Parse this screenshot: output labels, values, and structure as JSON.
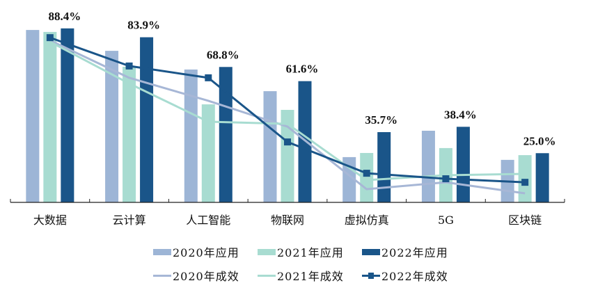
{
  "chart_data": {
    "type": "bar",
    "title": "",
    "xlabel": "",
    "ylabel": "",
    "ylim": [
      0,
      100
    ],
    "grid": false,
    "legend_position": "bottom",
    "categories": [
      "大数据",
      "云计算",
      "人工智能",
      "物联网",
      "虚拟仿真",
      "5G",
      "区块链"
    ],
    "bar_series": [
      {
        "name": "2020年应用",
        "color": "#9db5d6",
        "values": [
          87.6,
          77.0,
          67.5,
          56.5,
          23.0,
          36.4,
          21.6
        ]
      },
      {
        "name": "2021年应用",
        "color": "#a8dcd1",
        "values": [
          86.6,
          68.9,
          49.8,
          47.0,
          25.1,
          27.6,
          24.0
        ]
      },
      {
        "name": "2022年应用",
        "color": "#1a5589",
        "values": [
          88.4,
          83.9,
          68.8,
          61.6,
          35.7,
          38.4,
          25.0
        ]
      }
    ],
    "line_series": [
      {
        "name": "2020年成效",
        "color": "#a7b7d6",
        "marker": "none",
        "values": [
          82.3,
          63.3,
          51.6,
          38.5,
          6.7,
          10.2,
          4.6
        ]
      },
      {
        "name": "2021年成效",
        "color": "#a8dcd1",
        "marker": "none",
        "values": [
          81.6,
          60.4,
          41.0,
          39.9,
          11.3,
          13.8,
          14.5
        ]
      },
      {
        "name": "2022年成效",
        "color": "#1a5589",
        "marker": "square",
        "values": [
          83.7,
          69.3,
          63.3,
          30.7,
          14.8,
          12.0,
          10.2
        ]
      }
    ],
    "data_labels": [
      "88.4%",
      "83.9%",
      "68.8%",
      "61.6%",
      "35.7%",
      "38.4%",
      "25.0%"
    ]
  },
  "legend": {
    "rows": [
      [
        {
          "name": "2020年应用",
          "kind": "bar",
          "color": "#9db5d6"
        },
        {
          "name": "2021年应用",
          "kind": "bar",
          "color": "#a8dcd1"
        },
        {
          "name": "2022年应用",
          "kind": "bar",
          "color": "#1a5589"
        }
      ],
      [
        {
          "name": "2020年成效",
          "kind": "line",
          "color": "#a7b7d6"
        },
        {
          "name": "2021年成效",
          "kind": "line",
          "color": "#a8dcd1"
        },
        {
          "name": "2022年成效",
          "kind": "line-marker",
          "color": "#1a5589"
        }
      ]
    ]
  }
}
